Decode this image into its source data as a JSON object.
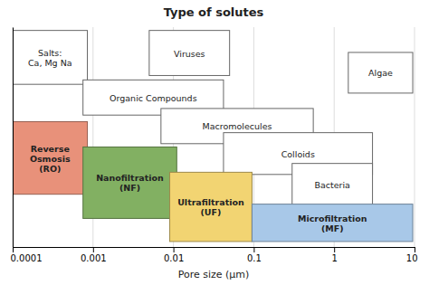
{
  "chart_data": {
    "type": "range",
    "title": "Type of solutes",
    "xlabel": "Pore size (μm)",
    "log": "x",
    "xlim": [
      0.0001,
      10
    ],
    "xticks": [
      0.0001,
      0.001,
      0.01,
      0.1,
      1,
      10
    ],
    "ylim": [
      0,
      1
    ],
    "yticks": [],
    "tick_labels": "x",
    "grid": true,
    "series": [
      {
        "type": "outline",
        "color": "white",
        "boxes": [
          {
            "label": "Salts:\nCa, Mg Na",
            "x0": 0.0001,
            "x1": 0.00085,
            "y0": 0.74,
            "y1": 0.985
          },
          {
            "label": "Viruses",
            "x0": 0.005,
            "x1": 0.05,
            "y0": 0.78,
            "y1": 0.985
          },
          {
            "label": "Algae",
            "x0": 1.5,
            "x1": 9.5,
            "y0": 0.7,
            "y1": 0.885
          },
          {
            "label": "Organic Compounds",
            "x0": 0.00075,
            "x1": 0.042,
            "y0": 0.6,
            "y1": 0.76
          },
          {
            "label": "Macromolecules",
            "x0": 0.007,
            "x1": 0.55,
            "y0": 0.47,
            "y1": 0.63
          },
          {
            "label": "Colloids",
            "x0": 0.042,
            "x1": 3.0,
            "y0": 0.33,
            "y1": 0.52
          },
          {
            "label": "Bacteria",
            "x0": 0.3,
            "x1": 3.0,
            "y0": 0.19,
            "y1": 0.38
          }
        ]
      },
      {
        "type": "filled",
        "boxes": [
          {
            "label": "Reverse\nOsmosis\n(RO)",
            "x0": 0.0001,
            "x1": 0.00085,
            "y0": 0.24,
            "y1": 0.57,
            "color": "#E8917A"
          },
          {
            "label": "Nanofiltration\n(NF)",
            "x0": 0.00075,
            "x1": 0.011,
            "y0": 0.13,
            "y1": 0.455,
            "color": "#82B062"
          },
          {
            "label": "Ultrafiltration\n(UF)",
            "x0": 0.009,
            "x1": 0.095,
            "y0": 0.025,
            "y1": 0.34,
            "color": "#F2D472"
          },
          {
            "label": "Microfiltration\n(MF)",
            "x0": 0.095,
            "x1": 9.5,
            "y0": 0.025,
            "y1": 0.195,
            "color": "#A8C8E8"
          }
        ]
      }
    ]
  }
}
